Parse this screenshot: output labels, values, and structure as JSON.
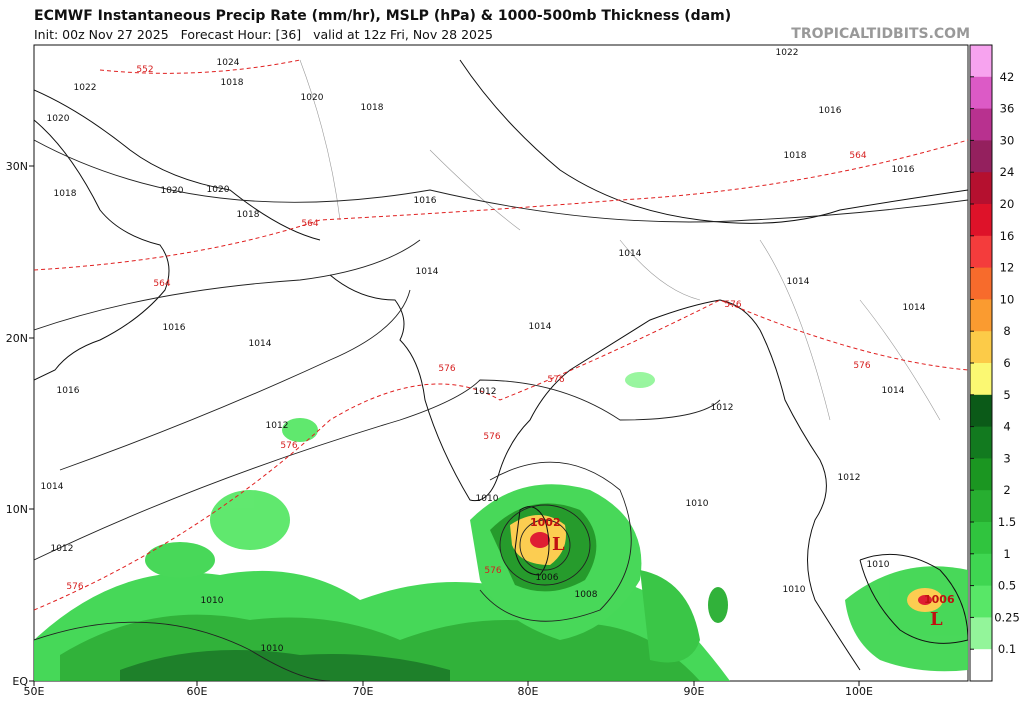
{
  "header": {
    "title": "ECMWF Instantaneous Precip Rate (mm/hr), MSLP (hPa) & 1000-500mb Thickness (dam)",
    "subtitle": "Init: 00z Nov 27 2025   Forecast Hour: [36]   valid at 12z Fri, Nov 28 2025",
    "source": "TROPICALTIDBITS.COM"
  },
  "map": {
    "lon_labels": [
      "50E",
      "60E",
      "70E",
      "80E",
      "90E",
      "100E"
    ],
    "lat_labels": [
      "EQ",
      "10N",
      "20N",
      "30N"
    ],
    "isobar_labels": [
      "1022",
      "1020",
      "1018",
      "1020",
      "1020",
      "1018",
      "1016",
      "1014",
      "1014",
      "1014",
      "1014",
      "1016",
      "1016",
      "1012",
      "1012",
      "1012",
      "1014",
      "1012",
      "1010",
      "1010",
      "1006",
      "1008",
      "1010",
      "1010",
      "1014",
      "1014",
      "1014",
      "1012",
      "1010",
      "1010",
      "1018",
      "1020",
      "1018",
      "1016",
      "1018",
      "1022",
      "1016",
      "1024"
    ],
    "thickness_labels": [
      "552",
      "564",
      "564",
      "576",
      "576",
      "576",
      "576",
      "576",
      "576",
      "576",
      "564",
      "576"
    ],
    "lows": [
      {
        "symbol": "L",
        "pressure": "1002"
      },
      {
        "symbol": "L",
        "pressure": "1006"
      }
    ]
  },
  "colorbar": {
    "labels": [
      42,
      36,
      30,
      24,
      20,
      16,
      12,
      10,
      8,
      6,
      5,
      4,
      3,
      2,
      1.5,
      1,
      0.5,
      0.25,
      0.1
    ],
    "colors": [
      "#f7a3ef",
      "#dc5ac6",
      "#b8318f",
      "#94205e",
      "#b5102f",
      "#de1229",
      "#f43c3c",
      "#f76b2c",
      "#fa9b30",
      "#fccb48",
      "#fbf872",
      "#0b5a18",
      "#127a1f",
      "#1b9621",
      "#27ae30",
      "#30c43e",
      "#3fd651",
      "#58e767",
      "#93f59a",
      "#ffffff"
    ]
  }
}
